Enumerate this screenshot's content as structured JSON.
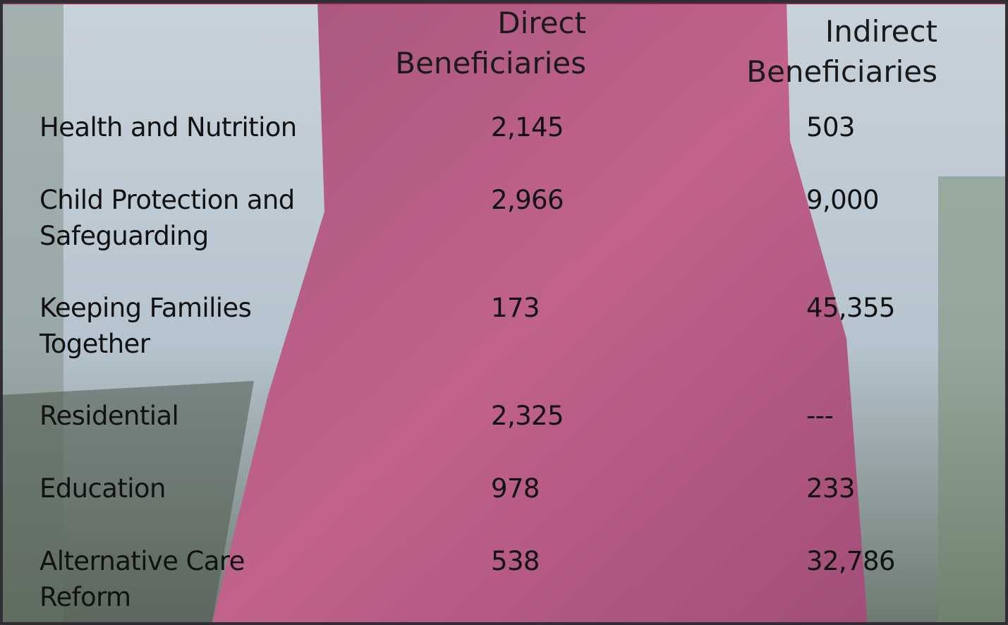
{
  "header": [
    "Direct Beneficiaries",
    "Indirect Beneficiaries"
  ],
  "rows": [
    [
      "Health and Nutrition",
      "2,145",
      "503"
    ],
    [
      "Child Protection and Safeguarding",
      "2,966",
      "9,000"
    ],
    [
      "Keeping Families Together",
      "173",
      "45,355"
    ],
    [
      "Residential",
      "2,325",
      "---"
    ],
    [
      "Education",
      "978",
      "233"
    ],
    [
      "Alternative Care Reform",
      "538",
      "32,786"
    ]
  ]
}
